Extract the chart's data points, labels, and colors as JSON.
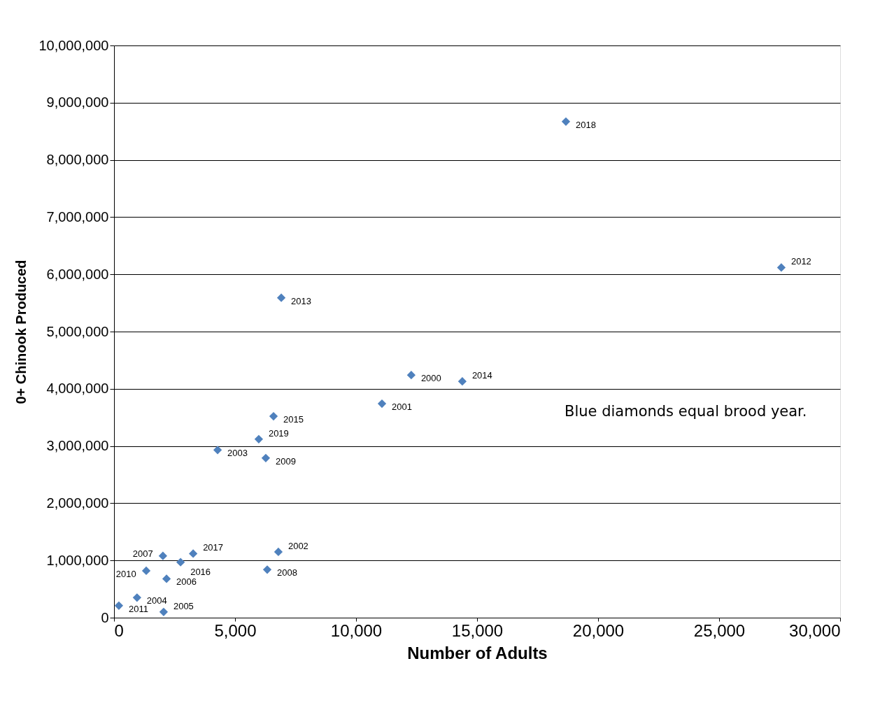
{
  "chart_data": {
    "type": "scatter",
    "xlabel": "Number of Adults",
    "ylabel": "0+ Chinook Produced",
    "annotations": [
      "Blue diamonds equal brood year.",
      {
        "text": "2018",
        "x": 18670,
        "y": 8670000
      },
      {
        "text": "2012",
        "x": 27570,
        "y": 6120000
      },
      {
        "text": "2013",
        "x": 6910,
        "y": 5590000
      },
      {
        "text": "2000",
        "x": 12280,
        "y": 4240000
      },
      {
        "text": "2014",
        "x": 14390,
        "y": 4130000
      },
      {
        "text": "2001",
        "x": 11070,
        "y": 3740000
      },
      {
        "text": "2015",
        "x": 6590,
        "y": 3520000
      },
      {
        "text": "2019",
        "x": 5980,
        "y": 3120000
      },
      {
        "text": "2003",
        "x": 4280,
        "y": 2930000
      },
      {
        "text": "2009",
        "x": 6270,
        "y": 2790000
      },
      {
        "text": "2002",
        "x": 6790,
        "y": 1150000
      },
      {
        "text": "2008",
        "x": 6330,
        "y": 840000
      },
      {
        "text": "2017",
        "x": 3270,
        "y": 1120000
      },
      {
        "text": "2007",
        "x": 2020,
        "y": 1080000
      },
      {
        "text": "2016",
        "x": 2750,
        "y": 970000
      },
      {
        "text": "2010",
        "x": 1330,
        "y": 820000
      },
      {
        "text": "2006",
        "x": 2170,
        "y": 680000
      },
      {
        "text": "2004",
        "x": 950,
        "y": 350000
      },
      {
        "text": "2011",
        "x": 200,
        "y": 210000
      },
      {
        "text": "2005",
        "x": 2050,
        "y": 100000
      }
    ],
    "x": [
      18670,
      27570,
      6910,
      12280,
      14390,
      11070,
      6590,
      5980,
      4280,
      6270,
      6790,
      6330,
      3270,
      2020,
      2750,
      1330,
      2170,
      950,
      200,
      2050
    ],
    "series": [
      {
        "color": "#4f81bd",
        "values": [
          8670000,
          6120000,
          5590000,
          4240000,
          4130000,
          3740000,
          3520000,
          3120000,
          2930000,
          2790000,
          1150000,
          840000,
          1120000,
          1080000,
          970000,
          820000,
          680000,
          350000,
          210000,
          100000
        ]
      }
    ],
    "xlim": [
      0,
      30000
    ],
    "xticks": [
      0,
      {
        "value": 5000,
        "label": "5,000"
      },
      {
        "value": 10000,
        "label": "10,000"
      },
      {
        "value": 15000,
        "label": "15,000"
      },
      {
        "value": 20000,
        "label": "20,000"
      },
      {
        "value": 25000,
        "label": "25,000"
      },
      {
        "value": 30000,
        "label": "30,000"
      }
    ],
    "ylim": [
      0,
      10000000
    ],
    "yticks": [
      0,
      {
        "value": 1000000,
        "label": "1,000,000"
      },
      {
        "value": 2000000,
        "label": "2,000,000"
      },
      {
        "value": 3000000,
        "label": "3,000,000"
      },
      {
        "value": 4000000,
        "label": "4,000,000"
      },
      {
        "value": 5000000,
        "label": "5,000,000"
      },
      {
        "value": 6000000,
        "label": "6,000,000"
      },
      {
        "value": 7000000,
        "label": "7,000,000"
      },
      {
        "value": 8000000,
        "label": "8,000,000"
      },
      {
        "value": 9000000,
        "label": "9,000,000"
      },
      {
        "value": 10000000,
        "label": "10,000,000"
      }
    ],
    "grid": "y",
    "marker": "diamond"
  }
}
